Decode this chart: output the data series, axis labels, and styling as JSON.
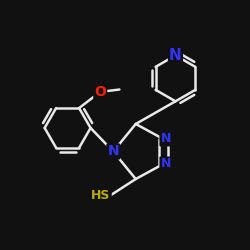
{
  "background_color": "#111111",
  "bond_color": "#e8e8e8",
  "bond_width": 1.8,
  "atom_colors": {
    "N": "#3333ff",
    "O": "#ff2200",
    "S": "#bbaa00",
    "C": "#e8e8e8"
  },
  "font_size": 10,
  "figsize": [
    2.5,
    2.5
  ],
  "dpi": 100
}
